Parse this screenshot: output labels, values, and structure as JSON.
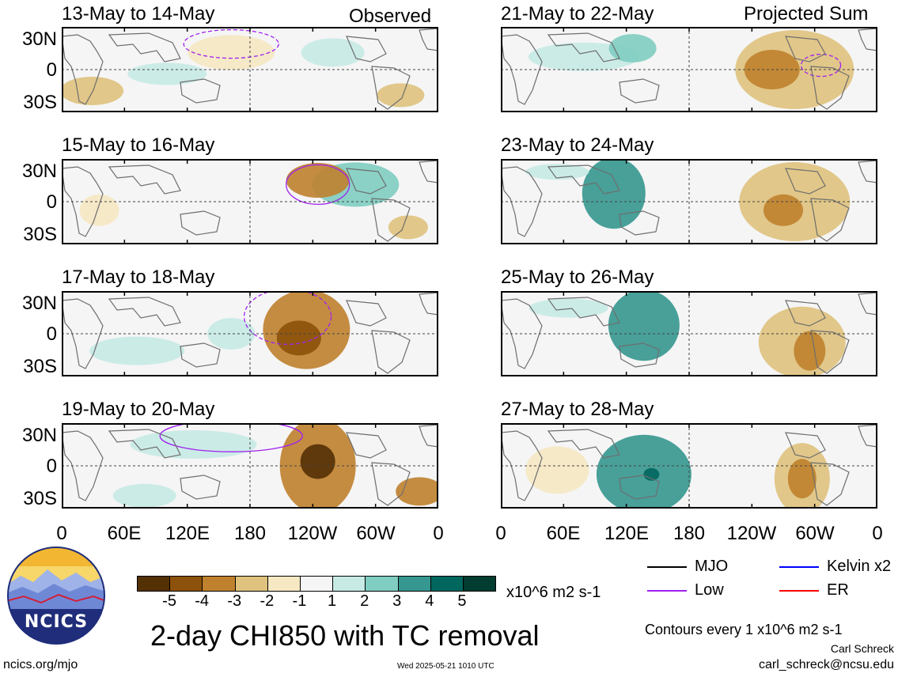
{
  "header": {
    "left_label": "Observed",
    "right_label": "Projected Sum"
  },
  "panels": [
    {
      "title": "13-May to 14-May"
    },
    {
      "title": "15-May to 16-May"
    },
    {
      "title": "17-May to 18-May"
    },
    {
      "title": "19-May to 20-May"
    },
    {
      "title": "21-May to 22-May"
    },
    {
      "title": "23-May to 24-May"
    },
    {
      "title": "25-May to 26-May"
    },
    {
      "title": "27-May to 28-May"
    }
  ],
  "lat_labels": [
    "30N",
    "0",
    "30S"
  ],
  "lon_labels": [
    "0",
    "60E",
    "120E",
    "180",
    "120W",
    "60W",
    "0"
  ],
  "colorbar": {
    "labels": [
      "-5",
      "-4",
      "-3",
      "-2",
      "-1",
      "1",
      "2",
      "3",
      "4",
      "5"
    ],
    "colors": [
      "#543005",
      "#8c510a",
      "#bf812d",
      "#dfc27d",
      "#f6e8c3",
      "#f5f5f5",
      "#c7eae5",
      "#80cdc1",
      "#35978f",
      "#01665e",
      "#003c30"
    ],
    "units": "x10^6 m2 s-1"
  },
  "legend": {
    "mjo": {
      "label": "MJO",
      "color": "#000000"
    },
    "kelvin": {
      "label": "Kelvin x2",
      "color": "#0000ff"
    },
    "low": {
      "label": "Low",
      "color": "#a020f0"
    },
    "er": {
      "label": "ER",
      "color": "#ff0000"
    }
  },
  "main_title": "2-day CHI850 with TC removal",
  "contour_note": "Contours every 1 x10^6 m2 s-1",
  "logo_text": "NCICS",
  "url": "ncics.org/mjo",
  "timestamp": "Wed 2025-05-21 1010 UTC",
  "author": "Carl Schreck",
  "email": "carl_schreck@ncsu.edu"
}
